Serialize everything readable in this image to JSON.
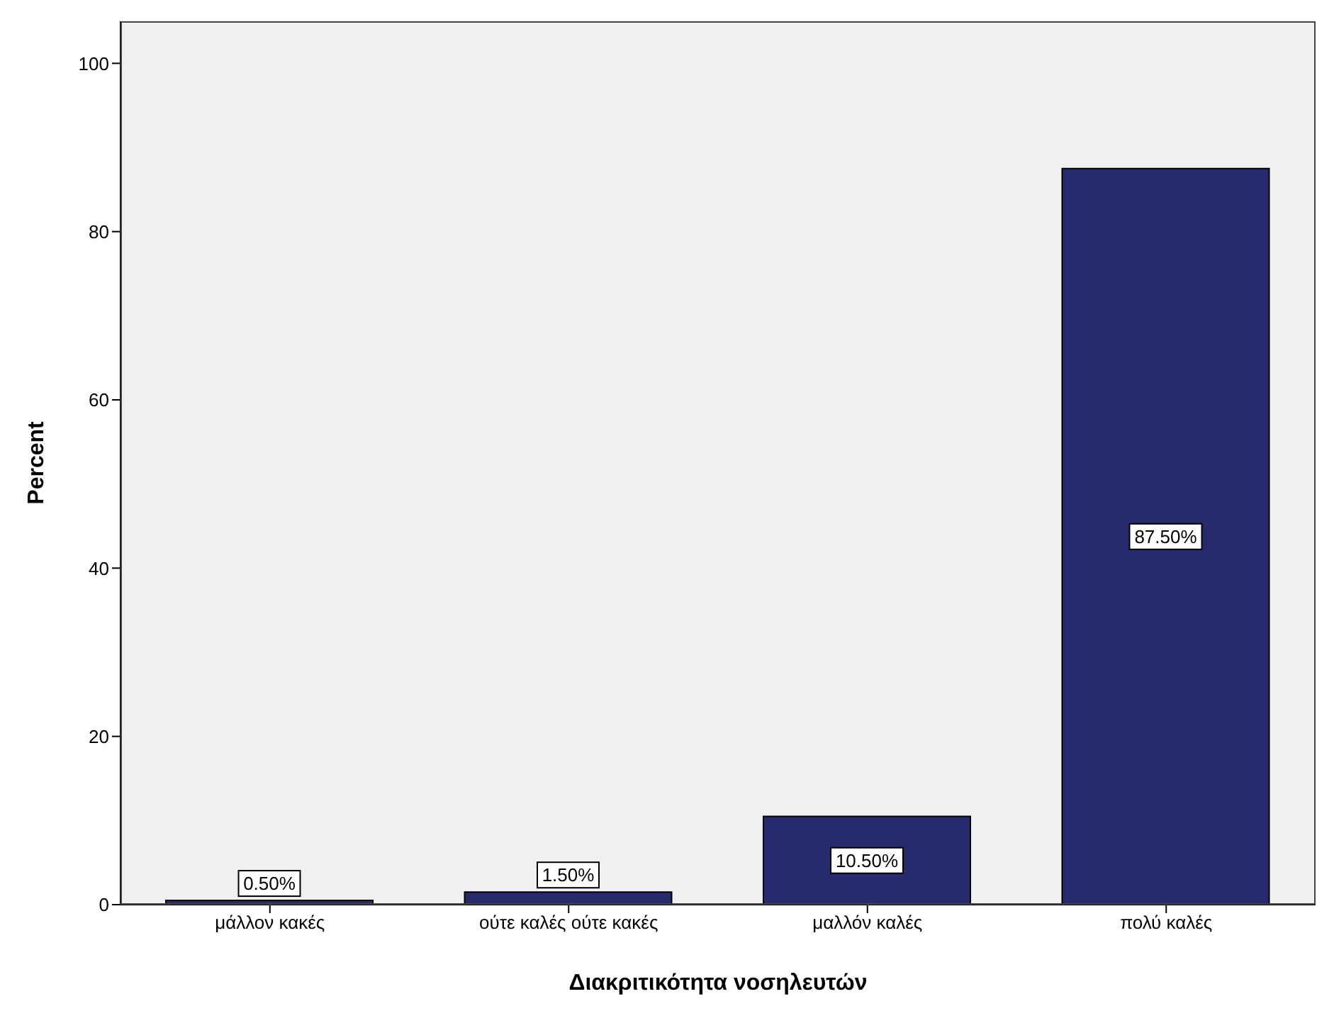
{
  "chart_data": {
    "type": "bar",
    "xlabel": "Διακριτικότητα νοσηλευτών",
    "ylabel": "Percent",
    "categories": [
      "μάλλον κακές",
      "ούτε καλές ούτε κακές",
      "μαλλόν καλές",
      "πολύ καλές"
    ],
    "values": [
      0.5,
      1.5,
      10.5,
      87.5
    ],
    "value_labels": [
      "0.50%",
      "1.50%",
      "10.50%",
      "87.50%"
    ],
    "color": "#282a6e",
    "ylim": [
      0,
      105
    ],
    "yticks": [
      0,
      20,
      40,
      60,
      80,
      100
    ]
  }
}
